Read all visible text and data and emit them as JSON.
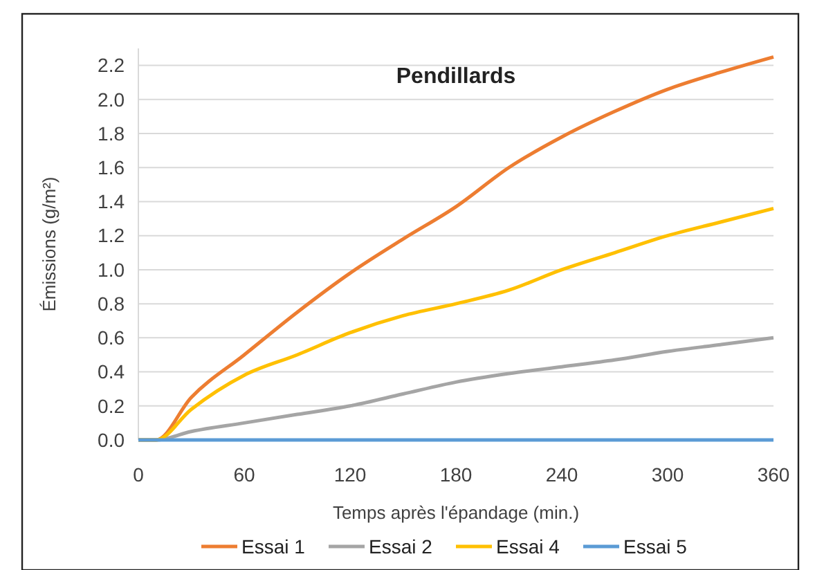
{
  "chart_data": {
    "type": "line",
    "title": "Pendillards",
    "xlabel": "Temps après l'épandage (min.)",
    "ylabel": "Émissions (g/m²)",
    "x": [
      0,
      10,
      30,
      60,
      90,
      120,
      150,
      180,
      210,
      240,
      270,
      300,
      330,
      360
    ],
    "series": [
      {
        "name": "Essai 1",
        "color": "#ed7d31",
        "values": [
          0,
          0,
          0.25,
          0.5,
          0.75,
          0.98,
          1.18,
          1.37,
          1.6,
          1.78,
          1.93,
          2.06,
          2.16,
          2.25
        ]
      },
      {
        "name": "Essai 2",
        "color": "#a5a5a5",
        "values": [
          0,
          0,
          0.05,
          0.1,
          0.15,
          0.2,
          0.27,
          0.34,
          0.39,
          0.43,
          0.47,
          0.52,
          0.56,
          0.6
        ]
      },
      {
        "name": "Essai 4",
        "color": "#ffc000",
        "values": [
          0,
          0,
          0.18,
          0.38,
          0.5,
          0.63,
          0.73,
          0.8,
          0.88,
          1.0,
          1.1,
          1.2,
          1.28,
          1.36
        ]
      },
      {
        "name": "Essai 5",
        "color": "#5b9bd5",
        "values": [
          0,
          0,
          0,
          0,
          0,
          0,
          0,
          0,
          0,
          0,
          0,
          0,
          0,
          0
        ]
      }
    ],
    "xlim": [
      0,
      360
    ],
    "xticks": [
      0,
      60,
      120,
      180,
      240,
      300,
      360
    ],
    "ylim": [
      0,
      2.3
    ],
    "yticks": [
      {
        "value": 0,
        "label": "0.0"
      },
      {
        "value": 0.2,
        "label": "0.2"
      },
      {
        "value": 0.4,
        "label": "0.4"
      },
      {
        "value": 0.6,
        "label": "0.6"
      },
      {
        "value": 0.8,
        "label": "0.8"
      },
      {
        "value": 1,
        "label": "1.0"
      },
      {
        "value": 1.2,
        "label": "1.2"
      },
      {
        "value": 1.4,
        "label": "1.4"
      },
      {
        "value": 1.6,
        "label": "1.6"
      },
      {
        "value": 1.8,
        "label": "1.8"
      },
      {
        "value": 2,
        "label": "2.0"
      },
      {
        "value": 2.2,
        "label": "2.2"
      }
    ],
    "grid": "y",
    "legend": "bottom",
    "marker": "none",
    "line_style": "solid"
  }
}
